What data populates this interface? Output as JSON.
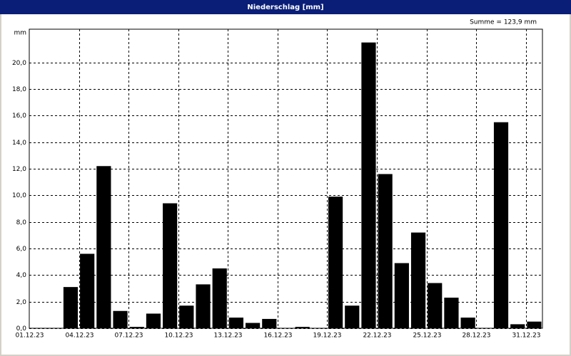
{
  "chart_data": {
    "type": "bar",
    "title": "Niederschlag [mm]",
    "y_label": "mm",
    "annotation": "Summe = 123,9 mm",
    "categories": [
      "01.12.23",
      null,
      null,
      "04.12.23",
      null,
      null,
      "07.12.23",
      null,
      null,
      "10.12.23",
      null,
      null,
      "13.12.23",
      null,
      null,
      "16.12.23",
      null,
      null,
      "19.12.23",
      null,
      null,
      "22.12.23",
      null,
      null,
      "25.12.23",
      null,
      null,
      "28.12.23",
      null,
      null,
      "31.12.23"
    ],
    "values": [
      0,
      0,
      3.1,
      5.6,
      12.2,
      1.3,
      0.1,
      1.1,
      9.4,
      1.7,
      3.3,
      4.5,
      0.8,
      0.4,
      0.7,
      0,
      0.1,
      0,
      9.9,
      1.7,
      21.5,
      11.6,
      4.9,
      7.2,
      3.4,
      2.3,
      0.8,
      0,
      15.5,
      0.3,
      0.5
    ],
    "color": "#000000",
    "ylim": [
      0,
      22.5
    ],
    "yticks": [
      {
        "value": 0,
        "label": "0,0"
      },
      {
        "value": 2,
        "label": "2,0"
      },
      {
        "value": 4,
        "label": "4,0"
      },
      {
        "value": 6,
        "label": "6,0"
      },
      {
        "value": 8,
        "label": "8,0"
      },
      {
        "value": 10,
        "label": "10,0"
      },
      {
        "value": 12,
        "label": "12,0"
      },
      {
        "value": 14,
        "label": "14,0"
      },
      {
        "value": 16,
        "label": "16,0"
      },
      {
        "value": 18,
        "label": "18,0"
      },
      {
        "value": 20,
        "label": "20,0"
      }
    ],
    "grid": true
  }
}
